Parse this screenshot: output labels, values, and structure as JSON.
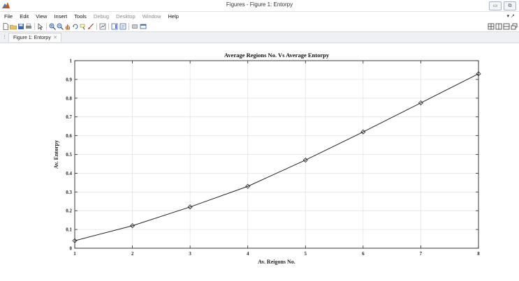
{
  "window": {
    "title": "Figures - Figure 1: Entorpy",
    "controls": [
      "▭",
      "⧉"
    ]
  },
  "menu": {
    "items": [
      {
        "label": "File",
        "enabled": true
      },
      {
        "label": "Edit",
        "enabled": true
      },
      {
        "label": "View",
        "enabled": true
      },
      {
        "label": "Insert",
        "enabled": true
      },
      {
        "label": "Tools",
        "enabled": true
      },
      {
        "label": "Debug",
        "enabled": false
      },
      {
        "label": "Desktop",
        "enabled": false
      },
      {
        "label": "Window",
        "enabled": false
      },
      {
        "label": "Help",
        "enabled": true
      }
    ],
    "overflow": "▾ ↗"
  },
  "toolbar": {
    "icons": [
      "new-figure-icon",
      "open-file-icon",
      "save-icon",
      "print-icon",
      "edit-plot-icon",
      "zoom-in-icon",
      "zoom-out-icon",
      "pan-icon",
      "rotate-3d-icon",
      "data-cursor-icon",
      "brush-icon",
      "link-plot-icon",
      "insert-colorbar-icon",
      "insert-legend-icon",
      "hide-plot-tools-icon",
      "show-plot-tools-icon"
    ],
    "layout_icons": [
      "tile-layout-icon",
      "split-vertical-icon",
      "split-horizontal-icon",
      "undock-icon"
    ]
  },
  "tabs": {
    "active": "Figure 1: Entorpy",
    "close": "✕",
    "grip": "⋮"
  },
  "chart_data": {
    "type": "line",
    "title": "Average Regions No. Vs Average Entorpy",
    "xlabel": "Av. Reigons No.",
    "ylabel": "Av. Entorpy",
    "x": [
      1,
      2,
      3,
      4,
      5,
      6,
      7,
      8
    ],
    "series": [
      {
        "values": [
          0.04,
          0.12,
          0.22,
          0.33,
          0.47,
          0.62,
          0.775,
          0.93
        ],
        "color": "#222222",
        "marker": "diamond"
      }
    ],
    "xlim": [
      1,
      8
    ],
    "ylim": [
      0,
      1
    ],
    "xticks": [
      "1",
      "2",
      "3",
      "4",
      "5",
      "6",
      "7",
      "8"
    ],
    "yticks": [
      "0",
      "0.1",
      "0.2",
      "0.3",
      "0.4",
      "0.5",
      "0.6",
      "0.7",
      "0.8",
      "0.9",
      "1"
    ],
    "grid": true
  }
}
